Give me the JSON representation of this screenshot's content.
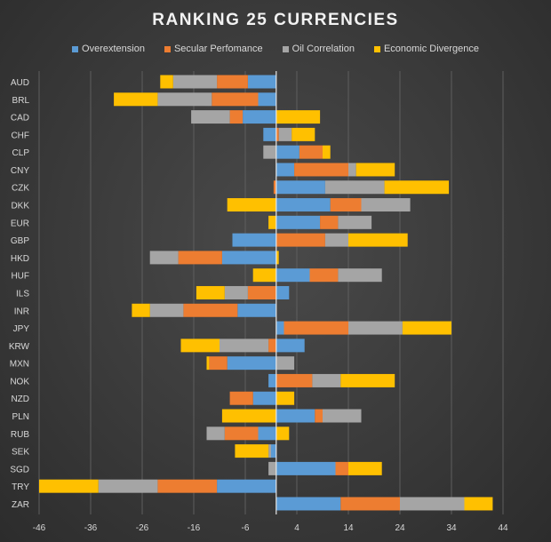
{
  "chart_data": {
    "type": "bar",
    "orientation": "horizontal",
    "stacked": true,
    "title": "RANKING  25 CURRENCIES",
    "categories": [
      "AUD",
      "BRL",
      "CAD",
      "CHF",
      "CLP",
      "CNY",
      "CZK",
      "DKK",
      "EUR",
      "GBP",
      "HKD",
      "HUF",
      "ILS",
      "INR",
      "JPY",
      "KRW",
      "MXN",
      "NOK",
      "NZD",
      "PLN",
      "RUB",
      "SEK",
      "SGD",
      "TRY",
      "ZAR"
    ],
    "series": [
      {
        "name": "Overextension",
        "color": "#5b9bd5",
        "values": [
          -5.5,
          -3.5,
          -6.5,
          -2.5,
          4.5,
          3.5,
          9.5,
          10.5,
          8.5,
          -8.5,
          -10.5,
          6.5,
          2.5,
          -7.5,
          1.5,
          5.5,
          -9.5,
          -1.5,
          -4.5,
          7.5,
          -3.5,
          -1,
          11.5,
          -11.5,
          12.5
        ]
      },
      {
        "name": "Secular Perfomance",
        "color": "#ed7d31",
        "values": [
          -6,
          -9,
          -2.5,
          0.5,
          4.5,
          10.5,
          -0.5,
          6,
          3.5,
          9.5,
          -8.5,
          5.5,
          -5.5,
          -10.5,
          12.5,
          -1.5,
          -3.5,
          7,
          -4.5,
          1.5,
          -6.5,
          0,
          2.5,
          -11.5,
          11.5
        ]
      },
      {
        "name": "Oil Correlation",
        "color": "#a5a5a5",
        "values": [
          -8.5,
          -10.5,
          -7.5,
          2.5,
          -2.5,
          1.5,
          11.5,
          9.5,
          6.5,
          4.5,
          -5.5,
          8.5,
          -4.5,
          -6.5,
          10.5,
          -9.5,
          3.5,
          5.5,
          0,
          7.5,
          -3.5,
          -0.5,
          -1.5,
          -11.5,
          12.5
        ]
      },
      {
        "name": "Economic Divergence",
        "color": "#ffc000",
        "values": [
          -2.5,
          -8.5,
          8.5,
          4.5,
          1.5,
          7.5,
          12.5,
          -9.5,
          -1.5,
          11.5,
          0.5,
          -4.5,
          -5.5,
          -3.5,
          9.5,
          -7.5,
          -0.5,
          10.5,
          3.5,
          -10.5,
          2.5,
          -6.5,
          6.5,
          -11.5,
          5.5
        ]
      }
    ],
    "xticks": [
      -46,
      -36,
      -26,
      -16,
      -6,
      4,
      14,
      24,
      34,
      44
    ],
    "xlim": [
      -46,
      44
    ],
    "legend_position": "top",
    "grid": "vertical"
  }
}
